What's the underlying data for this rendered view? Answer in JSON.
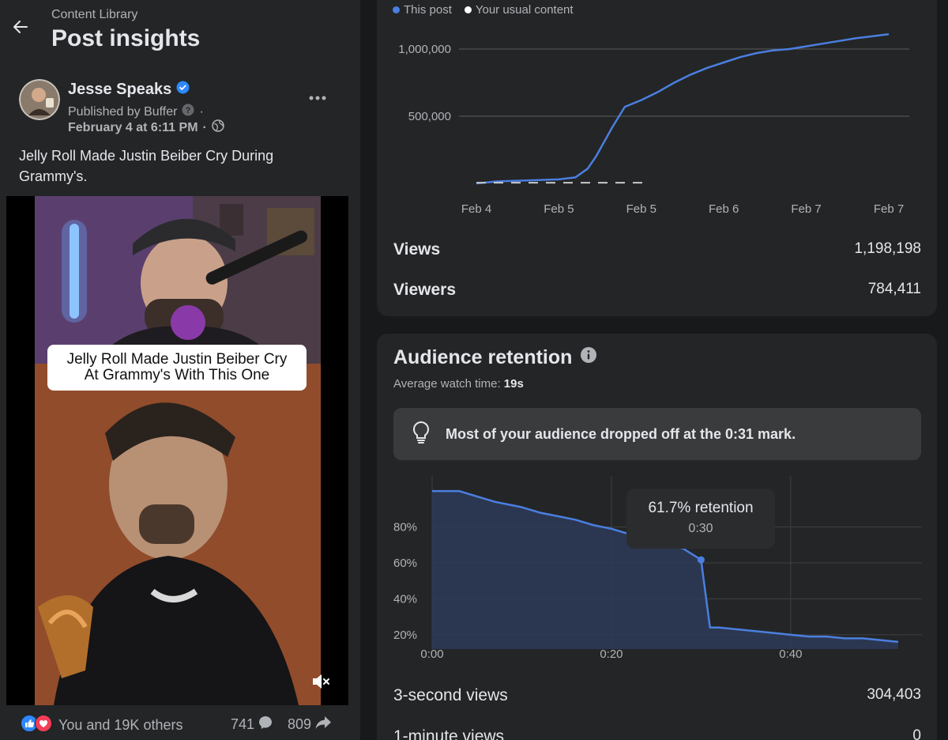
{
  "header": {
    "breadcrumb": "Content Library",
    "title": "Post insights"
  },
  "post": {
    "author": "Jesse Speaks",
    "published_by": "Published by Buffer",
    "date": "February 4 at 6:11 PM",
    "caption": "Jelly Roll Made Justin Beiber Cry During Grammy's.",
    "video_overlay_line1": "Jelly Roll Made Justin Beiber Cry",
    "video_overlay_line2": "At Grammy's With This One",
    "reactions_text": "You and 19K others",
    "comments_count": "741",
    "shares_count": "809"
  },
  "views_card": {
    "legend": [
      {
        "label": "This post",
        "color": "#4a7fe0"
      },
      {
        "label": "Your usual content",
        "color": "#ffffff"
      }
    ],
    "stats": [
      {
        "label": "Views",
        "value": "1,198,198"
      },
      {
        "label": "Viewers",
        "value": "784,411"
      }
    ]
  },
  "retention_card": {
    "title": "Audience retention",
    "avg_watch_label": "Average watch time:",
    "avg_watch_value": "19s",
    "insight": "Most of your audience dropped off at the 0:31 mark.",
    "tooltip_pct": "61.7% retention",
    "tooltip_time": "0:30",
    "stats": [
      {
        "label": "3-second views",
        "value": "304,403"
      },
      {
        "label": "1-minute views",
        "value": "0"
      }
    ]
  },
  "chart_data": [
    {
      "type": "line",
      "title": "",
      "x_tick_labels": [
        "Feb 4",
        "Feb 5",
        "Feb 5",
        "Feb 6",
        "Feb 7",
        "Feb 7"
      ],
      "y_tick_labels": [
        "500,000",
        "1,000,000"
      ],
      "ylim": [
        0,
        1100000
      ],
      "grid": true,
      "legend_position": "top-left",
      "series": [
        {
          "name": "This post",
          "color": "#4a7fe0",
          "x": [
            0,
            0.25,
            0.5,
            0.75,
            1,
            1.2,
            1.35,
            1.45,
            1.55,
            1.65,
            1.8,
            2.0,
            2.2,
            2.4,
            2.6,
            2.8,
            3.0,
            3.2,
            3.4,
            3.6,
            3.8,
            4.0,
            4.2,
            4.4,
            4.6,
            4.8,
            5.0
          ],
          "y": [
            0,
            15000,
            20000,
            25000,
            30000,
            45000,
            110000,
            200000,
            310000,
            420000,
            570000,
            620000,
            680000,
            750000,
            810000,
            860000,
            900000,
            940000,
            970000,
            990000,
            1000000,
            1020000,
            1040000,
            1060000,
            1080000,
            1095000,
            1110000
          ]
        },
        {
          "name": "Your usual content",
          "color": "#c8c9cc",
          "dashed": true,
          "x": [
            0,
            0.5,
            1.0,
            1.5,
            2.05
          ],
          "y": [
            5000,
            5000,
            5000,
            5000,
            5000
          ]
        }
      ]
    },
    {
      "type": "area",
      "title": "Audience retention",
      "x_tick_labels": [
        "0:00",
        "0:20",
        "0:40"
      ],
      "y_tick_labels": [
        "20%",
        "40%",
        "60%",
        "80%"
      ],
      "xlim": [
        0,
        52
      ],
      "ylim": [
        12,
        104
      ],
      "grid": true,
      "series": [
        {
          "name": "This post",
          "color": "#4a7fe0",
          "x": [
            0,
            3,
            5,
            7,
            9,
            10,
            12,
            14,
            16,
            18,
            20,
            22,
            24,
            26,
            28,
            30,
            31,
            32,
            34,
            36,
            38,
            40,
            42,
            44,
            46,
            48,
            50,
            52
          ],
          "y": [
            100,
            100,
            97,
            94,
            92,
            91,
            88,
            86,
            84,
            81,
            79,
            76,
            74,
            71,
            68,
            61.7,
            24,
            24,
            23,
            22,
            21,
            20,
            19,
            19,
            18,
            18,
            17,
            16
          ]
        }
      ],
      "highlight_point": {
        "x": 30,
        "y": 61.7
      }
    }
  ]
}
